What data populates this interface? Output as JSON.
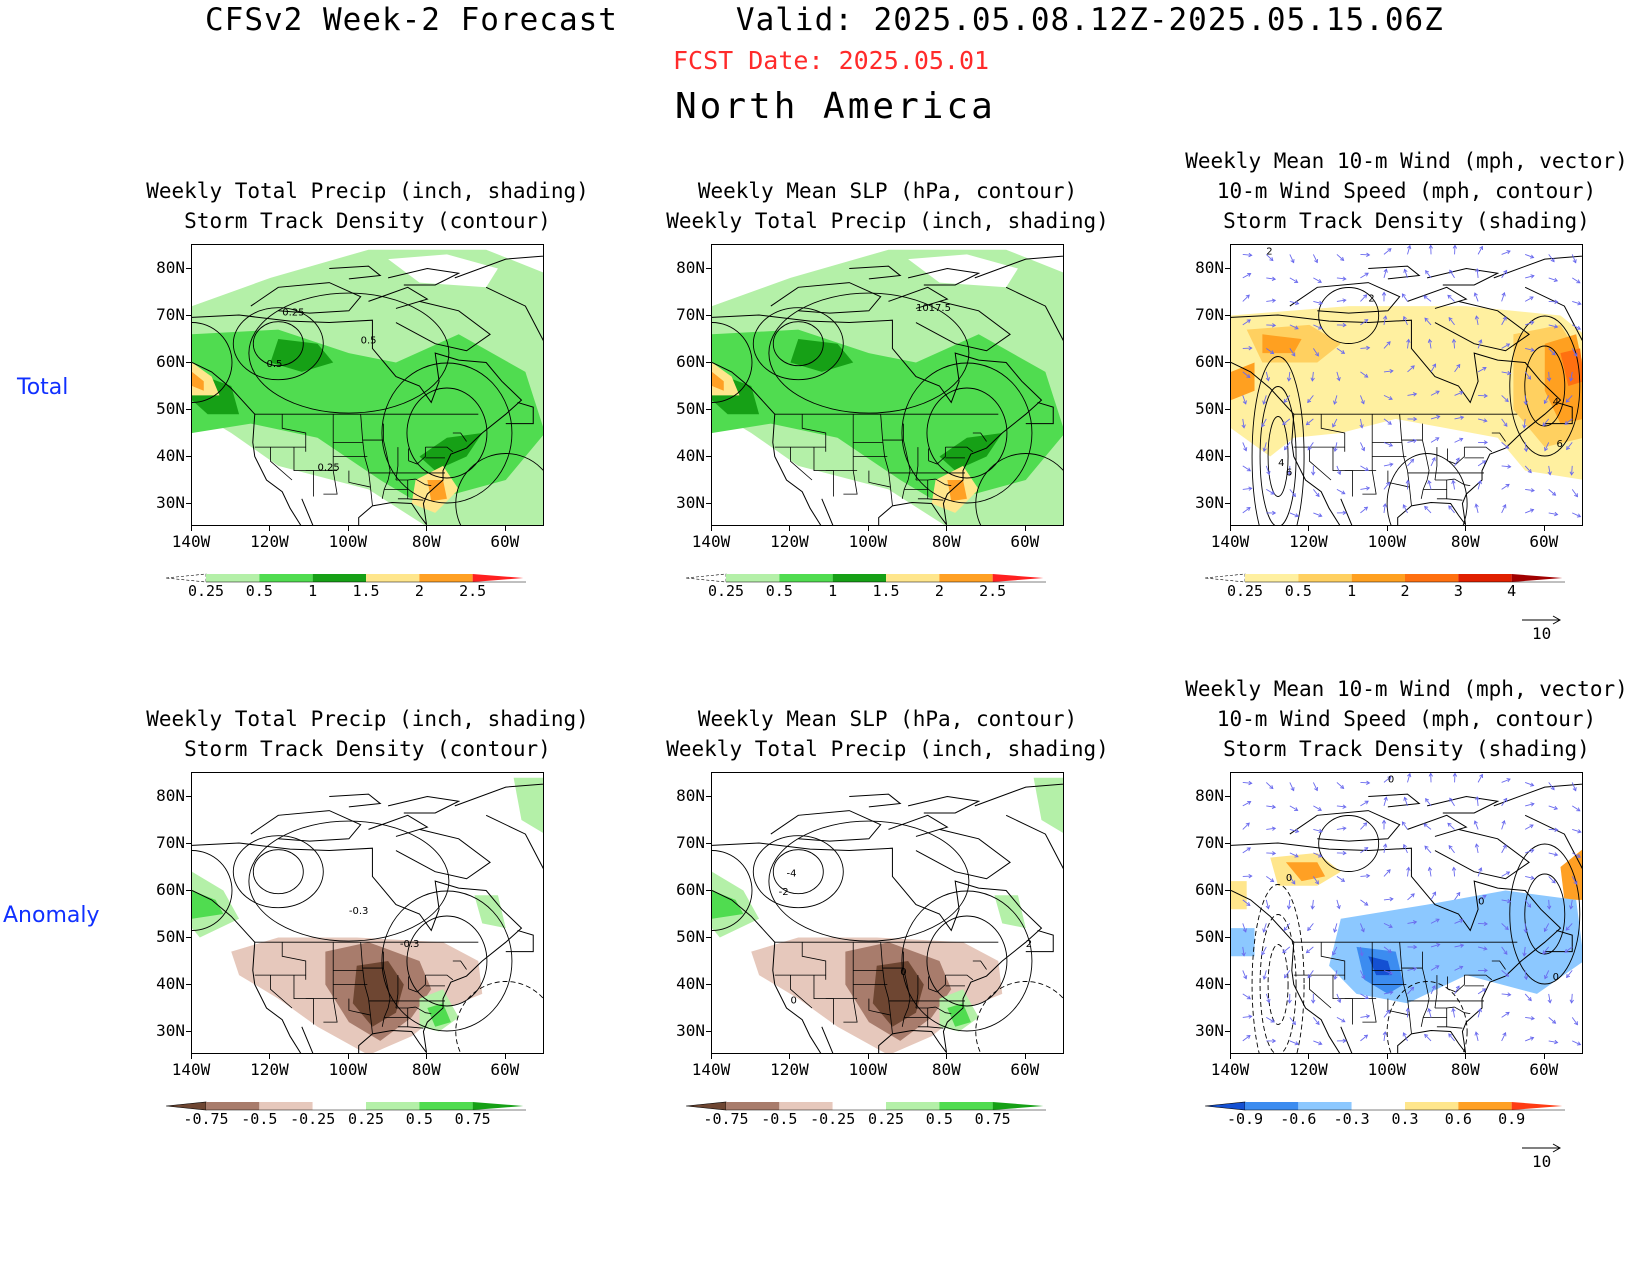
{
  "header": {
    "title": "CFSv2 Week-2 Forecast      Valid: 2025.05.08.12Z-2025.05.15.06Z",
    "fcst_date": "FCST Date: 2025.05.01",
    "region": "North America"
  },
  "rows": {
    "total": "Total",
    "anomaly": "Anomaly"
  },
  "axes": {
    "lat_labels": [
      "80N",
      "70N",
      "60N",
      "50N",
      "40N",
      "30N"
    ],
    "lon_labels": [
      "140W",
      "120W",
      "100W",
      "80W",
      "60W"
    ],
    "lat_range": [
      25,
      85
    ],
    "lon_range": [
      -140,
      -50
    ]
  },
  "panels": [
    {
      "id": "total-precip",
      "title": [
        "Weekly Total Precip (inch, shading)",
        "Storm Track Density (contour)"
      ],
      "colorbar": {
        "labels": [
          "0.25",
          "0.5",
          "1",
          "1.5",
          "2",
          "2.5"
        ],
        "colors": [
          "#ffffff",
          "#b4f0a8",
          "#50dc50",
          "#16a016",
          "#ffe68c",
          "#ffa024",
          "#ff2020"
        ]
      },
      "contour_labels": [
        "0.25",
        "0.5",
        "0.5",
        "0.25"
      ],
      "vector_ref": ""
    },
    {
      "id": "total-slp",
      "title": [
        "Weekly Mean SLP (hPa, contour)",
        "Weekly Total Precip (inch, shading)"
      ],
      "colorbar": {
        "labels": [
          "0.25",
          "0.5",
          "1",
          "1.5",
          "2",
          "2.5"
        ],
        "colors": [
          "#ffffff",
          "#b4f0a8",
          "#50dc50",
          "#16a016",
          "#ffe68c",
          "#ffa024",
          "#ff2020"
        ]
      },
      "contour_labels": [
        "1017.5"
      ],
      "vector_ref": ""
    },
    {
      "id": "total-wind",
      "title": [
        "Weekly Mean 10-m Wind (mph, vector)",
        "10-m Wind Speed (mph, contour)",
        "Storm Track Density (shading)"
      ],
      "colorbar": {
        "labels": [
          "0.25",
          "0.5",
          "1",
          "2",
          "3",
          "4"
        ],
        "colors": [
          "#ffffff",
          "#fff0a0",
          "#ffd060",
          "#ffa020",
          "#ff7010",
          "#e02000",
          "#a00000"
        ]
      },
      "contour_labels": [
        "2",
        "2",
        "4",
        "6",
        "4",
        "6"
      ],
      "vector_ref": "10"
    },
    {
      "id": "anom-precip",
      "title": [
        "Weekly Total Precip (inch, shading)",
        "Storm Track Density (contour)"
      ],
      "colorbar": {
        "labels": [
          "-0.75",
          "-0.5",
          "-0.25",
          "0.25",
          "0.5",
          "0.75"
        ],
        "colors": [
          "#6e4632",
          "#a87c6c",
          "#e6c8bc",
          "#ffffff",
          "#b4f0a8",
          "#50dc50",
          "#16a016"
        ]
      },
      "contour_labels": [
        "-0.3",
        "-0.3"
      ],
      "vector_ref": ""
    },
    {
      "id": "anom-slp",
      "title": [
        "Weekly Mean SLP (hPa, contour)",
        "Weekly Total Precip (inch, shading)"
      ],
      "colorbar": {
        "labels": [
          "-0.75",
          "-0.5",
          "-0.25",
          "0.25",
          "0.5",
          "0.75"
        ],
        "colors": [
          "#6e4632",
          "#a87c6c",
          "#e6c8bc",
          "#ffffff",
          "#b4f0a8",
          "#50dc50",
          "#16a016"
        ]
      },
      "contour_labels": [
        "-4",
        "-2",
        "2",
        "0",
        "0"
      ],
      "vector_ref": ""
    },
    {
      "id": "anom-wind",
      "title": [
        "Weekly Mean 10-m Wind (mph, vector)",
        "10-m Wind Speed (mph, contour)",
        "Storm Track Density (shading)"
      ],
      "colorbar": {
        "labels": [
          "-0.9",
          "-0.6",
          "-0.3",
          "0.3",
          "0.6",
          "0.9"
        ],
        "colors": [
          "#1450d2",
          "#3c8cf0",
          "#8cc8ff",
          "#ffffff",
          "#ffe68c",
          "#ffa024",
          "#ff3c14"
        ]
      },
      "contour_labels": [
        "0",
        "0",
        "0",
        "0"
      ],
      "vector_ref": "10"
    }
  ]
}
